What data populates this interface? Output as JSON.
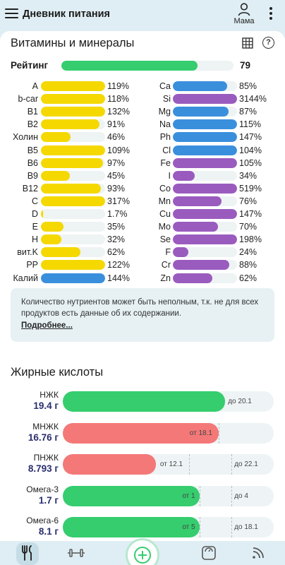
{
  "app": {
    "title": "Дневник питания",
    "profile_name": "Мама"
  },
  "icons": {
    "menu": "hamburger-menu-icon",
    "profile": "person-icon",
    "more": "more-vertical-icon",
    "table": "table-icon",
    "help": "help-circle-icon"
  },
  "colors": {
    "vitamin": "#f5d800",
    "mineral_purple": "#9a5bbf",
    "mineral_blue": "#3a8fdd",
    "ok_green": "#35cd6e",
    "over_red": "#f47878"
  },
  "vitamins_section": {
    "title": "Витамины и минералы",
    "help_label": "?",
    "rating_label": "Рейтинг",
    "rating_value": "79",
    "rating_fraction": 0.79
  },
  "left_column": [
    {
      "label": "A",
      "pct": "119%",
      "fill": 1.0,
      "color": "#f5d800"
    },
    {
      "label": "b-car",
      "pct": "118%",
      "fill": 1.0,
      "color": "#f5d800"
    },
    {
      "label": "B1",
      "pct": "132%",
      "fill": 1.0,
      "color": "#f5d800"
    },
    {
      "label": "B2",
      "pct": "91%",
      "fill": 0.91,
      "color": "#f5d800"
    },
    {
      "label": "Холин",
      "pct": "46%",
      "fill": 0.46,
      "color": "#f5d800"
    },
    {
      "label": "B5",
      "pct": "109%",
      "fill": 1.0,
      "color": "#f5d800"
    },
    {
      "label": "B6",
      "pct": "97%",
      "fill": 0.97,
      "color": "#f5d800"
    },
    {
      "label": "B9",
      "pct": "45%",
      "fill": 0.45,
      "color": "#f5d800"
    },
    {
      "label": "B12",
      "pct": "93%",
      "fill": 0.93,
      "color": "#f5d800"
    },
    {
      "label": "C",
      "pct": "317%",
      "fill": 1.0,
      "color": "#f5d800"
    },
    {
      "label": "D",
      "pct": "1.7%",
      "fill": 0.03,
      "color": "#f5d800"
    },
    {
      "label": "E",
      "pct": "35%",
      "fill": 0.35,
      "color": "#f5d800"
    },
    {
      "label": "H",
      "pct": "32%",
      "fill": 0.32,
      "color": "#f5d800"
    },
    {
      "label": "вит.K",
      "pct": "62%",
      "fill": 0.62,
      "color": "#f5d800"
    },
    {
      "label": "PP",
      "pct": "122%",
      "fill": 1.0,
      "color": "#f5d800"
    },
    {
      "label": "Калий",
      "pct": "144%",
      "fill": 1.0,
      "color": "#3a8fdd"
    }
  ],
  "right_column": [
    {
      "label": "Ca",
      "pct": "85%",
      "fill": 0.85,
      "color": "#3a8fdd"
    },
    {
      "label": "Si",
      "pct": "3144%",
      "fill": 1.0,
      "color": "#9a5bbf"
    },
    {
      "label": "Mg",
      "pct": "87%",
      "fill": 0.87,
      "color": "#3a8fdd"
    },
    {
      "label": "Na",
      "pct": "115%",
      "fill": 1.0,
      "color": "#3a8fdd"
    },
    {
      "label": "Ph",
      "pct": "147%",
      "fill": 1.0,
      "color": "#3a8fdd"
    },
    {
      "label": "Cl",
      "pct": "104%",
      "fill": 1.0,
      "color": "#3a8fdd"
    },
    {
      "label": "Fe",
      "pct": "105%",
      "fill": 1.0,
      "color": "#9a5bbf"
    },
    {
      "label": "I",
      "pct": "34%",
      "fill": 0.34,
      "color": "#9a5bbf"
    },
    {
      "label": "Co",
      "pct": "519%",
      "fill": 1.0,
      "color": "#9a5bbf"
    },
    {
      "label": "Mn",
      "pct": "76%",
      "fill": 0.76,
      "color": "#9a5bbf"
    },
    {
      "label": "Cu",
      "pct": "147%",
      "fill": 1.0,
      "color": "#9a5bbf"
    },
    {
      "label": "Mo",
      "pct": "70%",
      "fill": 0.7,
      "color": "#9a5bbf"
    },
    {
      "label": "Se",
      "pct": "198%",
      "fill": 1.0,
      "color": "#9a5bbf"
    },
    {
      "label": "F",
      "pct": "24%",
      "fill": 0.24,
      "color": "#9a5bbf"
    },
    {
      "label": "Cr",
      "pct": "88%",
      "fill": 0.88,
      "color": "#9a5bbf"
    },
    {
      "label": "Zn",
      "pct": "62%",
      "fill": 0.62,
      "color": "#9a5bbf"
    }
  ],
  "info": {
    "text": "Количество нутриентов может быть неполным, т.к. не для всех продуктов есть данные об их содержании.",
    "link": "Подробнее..."
  },
  "fatty_acids": {
    "title": "Жирные кислоты",
    "rows": [
      {
        "name": "НЖК",
        "value": "19.4 г",
        "fill": 0.77,
        "color": "#35cd6e",
        "min_label": "",
        "max_label": "до 20.1",
        "min_pos": 0,
        "max_pos": 0.77
      },
      {
        "name": "МНЖК",
        "value": "16.76 г",
        "fill": 0.74,
        "color": "#f47878",
        "min_label": "от 18.1",
        "max_label": "",
        "min_pos": 0.74,
        "max_pos": 0
      },
      {
        "name": "ПНЖК",
        "value": "8.793 г",
        "fill": 0.44,
        "color": "#f47878",
        "min_label": "от 12.1",
        "max_label": "до 22.1",
        "min_pos": 0.6,
        "max_pos": 0.8
      },
      {
        "name": "Омега-3",
        "value": "1.7 г",
        "fill": 0.65,
        "color": "#35cd6e",
        "min_label": "от 1",
        "max_label": "до 4",
        "min_pos": 0.65,
        "max_pos": 0.8
      },
      {
        "name": "Омега-6",
        "value": "8.1 г",
        "fill": 0.65,
        "color": "#35cd6e",
        "min_label": "от 5",
        "max_label": "до 18.1",
        "min_pos": 0.65,
        "max_pos": 0.8
      }
    ]
  },
  "bottom_nav": {
    "items": [
      "fork-knife-icon",
      "dumbbell-icon",
      "add-icon",
      "scale-icon",
      "rss-icon"
    ]
  }
}
